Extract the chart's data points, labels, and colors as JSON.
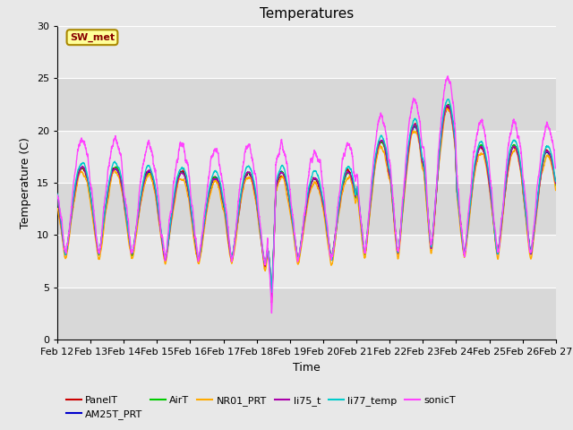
{
  "title": "Temperatures",
  "xlabel": "Time",
  "ylabel": "Temperature (C)",
  "ylim": [
    0,
    30
  ],
  "background_color": "#e8e8e8",
  "plot_bg_color": "#e8e8e8",
  "series_colors": {
    "PanelT": "#cc0000",
    "AM25T_PRT": "#0000cc",
    "AirT": "#00cc00",
    "NR01_PRT": "#ffaa00",
    "li75_t": "#aa00aa",
    "li77_temp": "#00cccc",
    "sonicT": "#ff44ff"
  },
  "annotation_text": "SW_met",
  "annotation_color": "#880000",
  "annotation_bg": "#ffff99",
  "annotation_border": "#aa8800",
  "tick_labels": [
    "Feb 12",
    "Feb 13",
    "Feb 14",
    "Feb 15",
    "Feb 16",
    "Feb 17",
    "Feb 18",
    "Feb 19",
    "Feb 20",
    "Feb 21",
    "Feb 22",
    "Feb 23",
    "Feb 24",
    "Feb 25",
    "Feb 26",
    "Feb 27"
  ],
  "yticks": [
    0,
    5,
    10,
    15,
    20,
    25,
    30
  ],
  "band_colors": [
    "#d8d8d8",
    "#e8e8e8"
  ]
}
